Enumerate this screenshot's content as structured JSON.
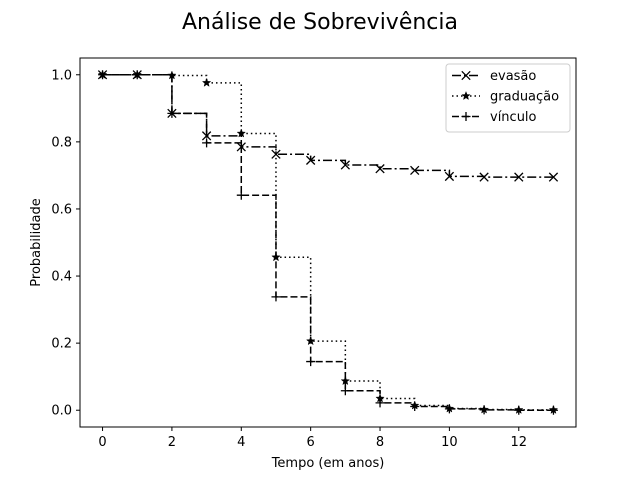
{
  "chart_data": {
    "type": "line",
    "title": "Análise de Sobrevivência",
    "xlabel": "Tempo (em anos)",
    "ylabel": "Probabilidade",
    "xlim": [
      -0.65,
      13.65
    ],
    "ylim": [
      -0.05,
      1.05
    ],
    "xticks": [
      0,
      2,
      4,
      6,
      8,
      10,
      12
    ],
    "xtick_labels": [
      "0",
      "2",
      "4",
      "6",
      "8",
      "10",
      "12"
    ],
    "yticks": [
      0.0,
      0.2,
      0.4,
      0.6,
      0.8,
      1.0
    ],
    "ytick_labels": [
      "0.0",
      "0.2",
      "0.4",
      "0.6",
      "0.8",
      "1.0"
    ],
    "grid": false,
    "legend_position": "top-right",
    "step": "post",
    "x": [
      0,
      1,
      2,
      3,
      4,
      5,
      6,
      7,
      8,
      9,
      10,
      11,
      12,
      13
    ],
    "series": [
      {
        "name": "evasão",
        "marker": "x",
        "dash": "dash-dot",
        "color": "#000000",
        "values": [
          1.0,
          1.0,
          0.885,
          0.818,
          0.785,
          0.763,
          0.745,
          0.731,
          0.72,
          0.715,
          0.697,
          0.695,
          0.695,
          0.695
        ]
      },
      {
        "name": "graduação",
        "marker": "star",
        "dash": "dotted",
        "color": "#000000",
        "values": [
          1.0,
          1.0,
          0.998,
          0.976,
          0.825,
          0.456,
          0.206,
          0.087,
          0.035,
          0.014,
          0.005,
          0.002,
          0.001,
          0.001
        ]
      },
      {
        "name": "vínculo",
        "marker": "plus",
        "dash": "dashed",
        "color": "#000000",
        "values": [
          1.0,
          1.0,
          0.885,
          0.797,
          0.641,
          0.338,
          0.145,
          0.058,
          0.022,
          0.011,
          0.004,
          0.001,
          0.0,
          0.0
        ]
      }
    ]
  }
}
